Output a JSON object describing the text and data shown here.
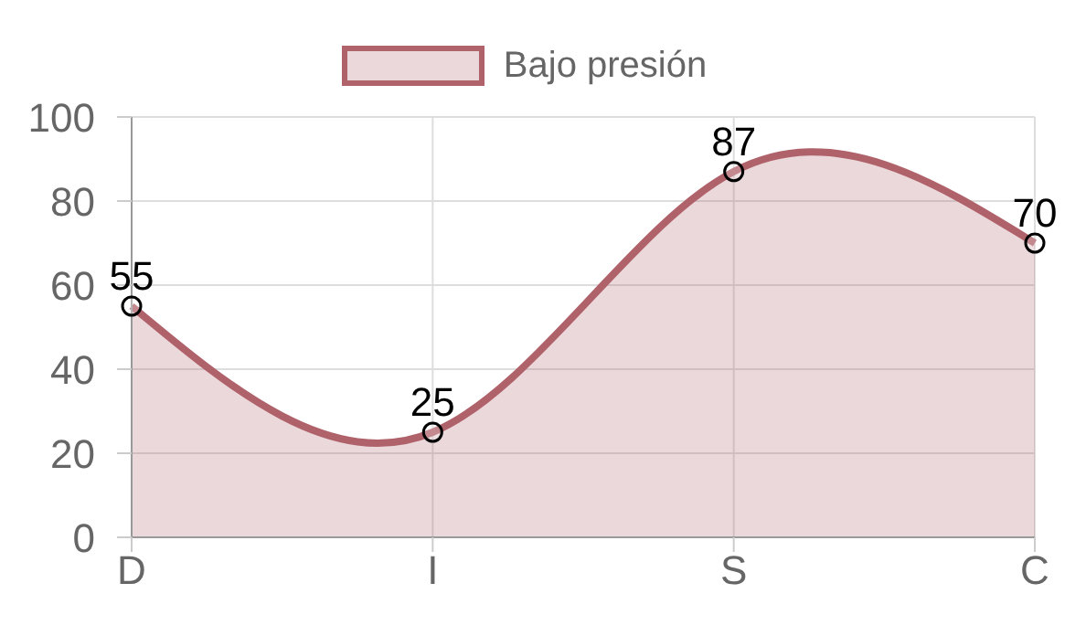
{
  "chart_data": {
    "type": "area",
    "categories": [
      "D",
      "I",
      "S",
      "C"
    ],
    "series": [
      {
        "name": "Bajo presión",
        "color": "#b0626a",
        "values": [
          55,
          25,
          87,
          70
        ]
      }
    ],
    "ylim": [
      0,
      100
    ],
    "yticks": [
      0,
      20,
      40,
      60,
      80,
      100
    ],
    "grid": true,
    "legend": "top",
    "marker": "circle",
    "data_labels": true
  }
}
